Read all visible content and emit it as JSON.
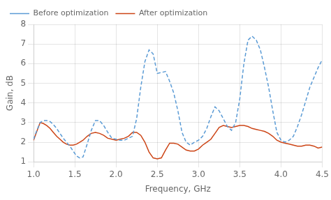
{
  "chart_data": {
    "type": "line",
    "xlabel": "Frequency, GHz",
    "ylabel": "Gain, dB",
    "xlim": [
      1,
      4.5
    ],
    "ylim": [
      1,
      8
    ],
    "xticks": [
      {
        "value": 1,
        "label": "1.0"
      },
      1.5,
      {
        "value": 2,
        "label": "2.0"
      },
      2.5,
      {
        "value": 3,
        "label": "3.0"
      },
      3.5,
      {
        "value": 4,
        "label": "4.0"
      },
      4.5
    ],
    "yticks": [
      1,
      2,
      3,
      4,
      5,
      6,
      7,
      8
    ],
    "grid": true,
    "legend": "upper left",
    "x": [
      1.0,
      1.04,
      1.08,
      1.12,
      1.16,
      1.2,
      1.24,
      1.28,
      1.32,
      1.36,
      1.4,
      1.44,
      1.48,
      1.52,
      1.56,
      1.6,
      1.65,
      1.7,
      1.75,
      1.8,
      1.85,
      1.9,
      1.95,
      2.0,
      2.05,
      2.1,
      2.15,
      2.2,
      2.25,
      2.3,
      2.35,
      2.4,
      2.45,
      2.5,
      2.55,
      2.6,
      2.65,
      2.7,
      2.75,
      2.8,
      2.85,
      2.9,
      2.95,
      3.0,
      3.05,
      3.1,
      3.15,
      3.2,
      3.25,
      3.3,
      3.35,
      3.4,
      3.45,
      3.5,
      3.55,
      3.6,
      3.65,
      3.7,
      3.75,
      3.8,
      3.85,
      3.9,
      3.95,
      4.0,
      4.05,
      4.1,
      4.15,
      4.2,
      4.25,
      4.3,
      4.35,
      4.4,
      4.45,
      4.5
    ],
    "series": [
      {
        "name": "Before optimization",
        "color": "#5b9bd5",
        "line_style": "dashed",
        "values": [
          2.15,
          2.6,
          3.0,
          3.1,
          3.1,
          3.05,
          2.9,
          2.7,
          2.45,
          2.2,
          2.0,
          1.8,
          1.55,
          1.3,
          1.2,
          1.25,
          1.9,
          2.6,
          3.1,
          3.1,
          2.85,
          2.5,
          2.2,
          2.15,
          2.1,
          2.1,
          2.2,
          2.3,
          3.2,
          4.8,
          6.1,
          6.7,
          6.5,
          5.5,
          5.55,
          5.6,
          5.1,
          4.5,
          3.6,
          2.5,
          2.0,
          1.85,
          2.0,
          2.1,
          2.3,
          2.7,
          3.3,
          3.8,
          3.6,
          3.2,
          2.8,
          2.6,
          3.0,
          4.2,
          6.0,
          7.2,
          7.4,
          7.2,
          6.7,
          5.8,
          4.8,
          3.6,
          2.5,
          2.1,
          2.0,
          2.1,
          2.3,
          2.8,
          3.4,
          4.1,
          4.8,
          5.3,
          5.8,
          6.2
        ]
      },
      {
        "name": "After optimization",
        "color": "#cc4415",
        "line_style": "solid",
        "values": [
          2.1,
          2.55,
          3.0,
          2.95,
          2.85,
          2.7,
          2.5,
          2.3,
          2.15,
          2.0,
          1.9,
          1.85,
          1.85,
          1.9,
          2.0,
          2.1,
          2.3,
          2.45,
          2.5,
          2.45,
          2.35,
          2.2,
          2.15,
          2.1,
          2.15,
          2.2,
          2.3,
          2.5,
          2.5,
          2.35,
          2.0,
          1.5,
          1.2,
          1.15,
          1.2,
          1.6,
          1.95,
          1.95,
          1.9,
          1.75,
          1.6,
          1.55,
          1.55,
          1.65,
          1.85,
          2.0,
          2.15,
          2.45,
          2.75,
          2.85,
          2.8,
          2.75,
          2.8,
          2.85,
          2.85,
          2.8,
          2.7,
          2.65,
          2.6,
          2.55,
          2.45,
          2.3,
          2.1,
          2.0,
          1.95,
          1.9,
          1.85,
          1.8,
          1.8,
          1.85,
          1.85,
          1.8,
          1.7,
          1.75
        ]
      }
    ]
  }
}
